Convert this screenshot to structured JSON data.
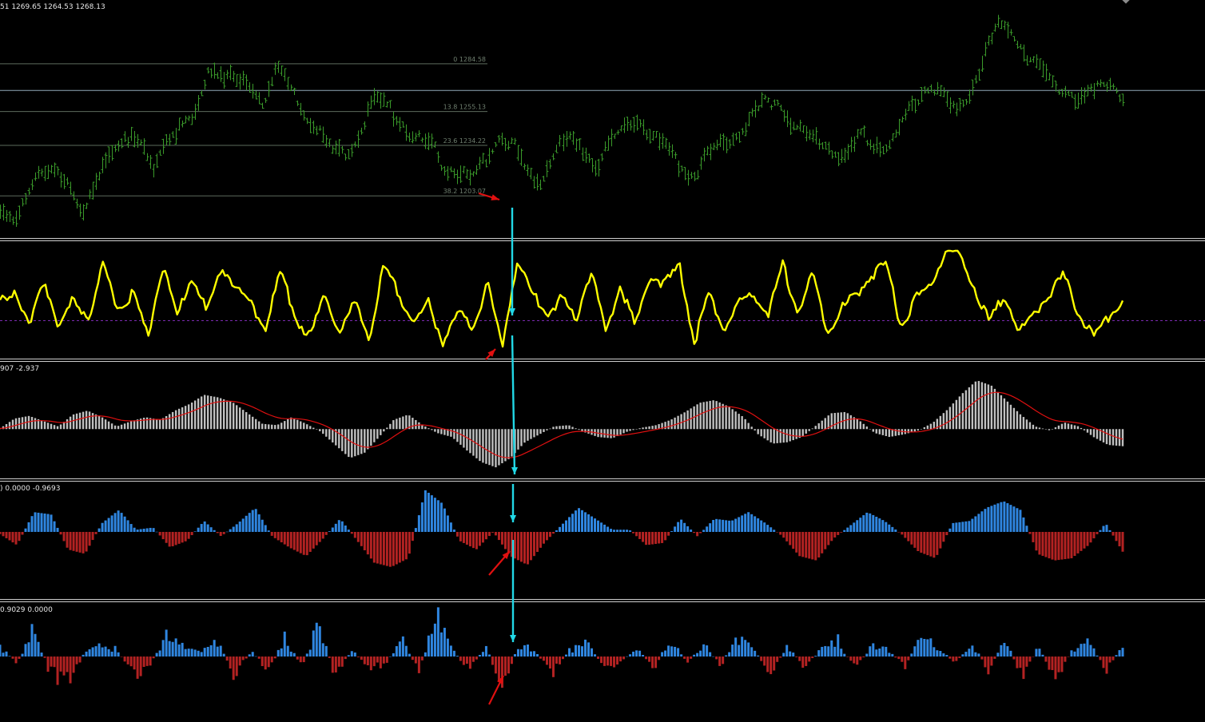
{
  "price_panel": {
    "ohlc_text": "51 1269.65 1264.53 1268.13",
    "fib_levels": [
      {
        "label": "0 1284.58",
        "price": 1284.58
      },
      {
        "label": "13.8 1255.13",
        "price": 1255.13
      },
      {
        "label": "23.6 1234.22",
        "price": 1234.22
      },
      {
        "label": "38.2 1203.07",
        "price": 1203.07
      }
    ],
    "current_price_line": 1268.13,
    "colors": {
      "bars": "#3a9a2a",
      "fib": "#5d6b5d",
      "price_line": "#8fa8b8"
    }
  },
  "oscillator_panel": {
    "color": "#ffff00",
    "zero_line_color": "#7a2ab0"
  },
  "macd_panel": {
    "header_text": "907 -2.937",
    "colors": {
      "histogram": "#c0c0c0",
      "signal": "#e01010"
    }
  },
  "histogram_panel_1": {
    "header_text": ") 0.0000 -0.9693",
    "colors": {
      "positive": "#2f86e0",
      "negative": "#b32222"
    }
  },
  "histogram_panel_2": {
    "header_text": "0.9029 0.0000",
    "colors": {
      "positive": "#2f86e0",
      "negative": "#b32222"
    }
  },
  "annotations": {
    "vertical_arrow_color": "#22d8e6",
    "marker_arrow_color": "#e01010"
  },
  "chart_data": [
    {
      "type": "ohlc",
      "title": "",
      "y": [
        1190,
        1188,
        1208,
        1216,
        1218,
        1213,
        1192,
        1210,
        1233,
        1240,
        1236,
        1221,
        1240,
        1245,
        1250,
        1283,
        1278,
        1274,
        1270,
        1262,
        1282,
        1267,
        1254,
        1242,
        1230,
        1228,
        1244,
        1262,
        1258,
        1248,
        1238,
        1236,
        1222,
        1218,
        1212,
        1226,
        1240,
        1236,
        1218,
        1213,
        1232,
        1238,
        1230,
        1222,
        1236,
        1246,
        1250,
        1240,
        1232,
        1221,
        1216,
        1228,
        1236,
        1240,
        1250,
        1260,
        1262,
        1248,
        1240,
        1238,
        1232,
        1226,
        1240,
        1236,
        1232,
        1246,
        1262,
        1272,
        1264,
        1254,
        1268,
        1290,
        1308,
        1304,
        1290,
        1284,
        1272,
        1268,
        1262,
        1268,
        1275,
        1263
      ],
      "ylim": [
        1180,
        1320
      ]
    },
    {
      "type": "line",
      "values": [
        0.45,
        0.6,
        0.2,
        0.7,
        0.2,
        0.5,
        0.3,
        0.85,
        0.4,
        0.55,
        0.1,
        0.85,
        0.3,
        0.75,
        0.35,
        0.85,
        0.6,
        0.45,
        0.2,
        0.8,
        0.3,
        0.1,
        0.55,
        0.15,
        0.45,
        0.1,
        0.85,
        0.55,
        0.25,
        0.45,
        0.05,
        0.35,
        0.2,
        0.65,
        0.0,
        0.9,
        0.55,
        0.35,
        0.5,
        0.3,
        0.8,
        0.15,
        0.65,
        0.2,
        0.75,
        0.65,
        0.85,
        0.05,
        0.55,
        0.2,
        0.45,
        0.55,
        0.35,
        0.85,
        0.35,
        0.75,
        0.15,
        0.4,
        0.55,
        0.75,
        0.85,
        0.2,
        0.5,
        0.65,
        1.0,
        0.95,
        0.6,
        0.25,
        0.55,
        0.15,
        0.35,
        0.55,
        0.75,
        0.35,
        0.1,
        0.3,
        0.5
      ],
      "ylim": [
        0,
        1
      ]
    },
    {
      "type": "bar",
      "values": [
        0.05,
        0.8,
        1.0,
        0.6,
        0.2,
        1.1,
        1.4,
        0.9,
        0.2,
        0.6,
        0.9,
        0.7,
        1.4,
        1.9,
        2.6,
        2.4,
        2.0,
        1.2,
        0.4,
        0.3,
        0.9,
        0.4,
        -0.2,
        -1.2,
        -2.2,
        -1.8,
        -0.6,
        0.7,
        1.1,
        0.3,
        -0.3,
        -0.6,
        -1.6,
        -2.5,
        -2.9,
        -2.2,
        -1.0,
        -0.4,
        0.2,
        0.3,
        -0.2,
        -0.6,
        -0.7,
        -0.2,
        0.1,
        0.3,
        0.7,
        1.3,
        2.0,
        2.2,
        1.7,
        0.9,
        -0.4,
        -1.1,
        -1.0,
        -0.6,
        0.3,
        1.2,
        1.3,
        0.6,
        -0.3,
        -0.6,
        -0.4,
        -0.1,
        0.5,
        1.5,
        2.7,
        3.7,
        3.3,
        2.2,
        1.1,
        0.2,
        -0.1,
        0.5,
        0.2,
        -0.6,
        -1.2,
        -1.3
      ],
      "ylim": [
        -3.5,
        4.5
      ]
    },
    {
      "type": "bar",
      "values": [
        -0.1,
        -0.6,
        0.9,
        0.8,
        -0.8,
        -1.0,
        0.4,
        1.0,
        0.1,
        0.2,
        -0.7,
        -0.4,
        0.5,
        -0.2,
        0.4,
        1.1,
        -0.2,
        -0.7,
        -1.1,
        -0.3,
        0.6,
        -0.4,
        -1.4,
        -1.6,
        -1.2,
        1.9,
        1.3,
        -0.4,
        -0.8,
        0.0,
        -1.1,
        -1.5,
        -0.5,
        0.3,
        1.1,
        0.6,
        0.1,
        0.1,
        -0.6,
        -0.5,
        0.6,
        -0.2,
        0.6,
        0.5,
        0.9,
        0.4,
        -0.2,
        -1.1,
        -1.3,
        -0.3,
        0.3,
        0.9,
        0.5,
        -0.1,
        -0.9,
        -1.2,
        0.4,
        0.5,
        1.1,
        1.4,
        1.0,
        -1.0,
        -1.3,
        -1.2,
        -0.6,
        0.4,
        -0.9
      ],
      "ylim": [
        -2,
        2
      ]
    },
    {
      "type": "bar",
      "values": [
        0.3,
        -0.2,
        0.8,
        -0.5,
        -0.9,
        0.1,
        0.4,
        0.2,
        -0.6,
        -0.2,
        0.7,
        0.3,
        0.1,
        0.5,
        -0.6,
        0.2,
        -0.5,
        0.6,
        -0.3,
        1.0,
        -0.6,
        0.2,
        -0.4,
        -0.2,
        0.5,
        -0.5,
        1.2,
        0.2,
        -0.4,
        0.3,
        -0.9,
        0.4,
        0.1,
        -0.5,
        0.2,
        0.4,
        -0.3,
        -0.2,
        0.3,
        -0.4,
        0.6,
        -0.2,
        0.4,
        -0.3,
        0.7,
        0.2,
        -0.5,
        0.3,
        -0.3,
        0.2,
        0.5,
        -0.4,
        0.3,
        0.2,
        -0.3,
        0.6,
        0.3,
        -0.2,
        0.4,
        -0.4,
        0.5,
        -0.6,
        0.3,
        -0.7,
        0.2,
        0.4,
        -0.4,
        0.3
      ],
      "ylim": [
        -1.4,
        1.4
      ]
    }
  ]
}
